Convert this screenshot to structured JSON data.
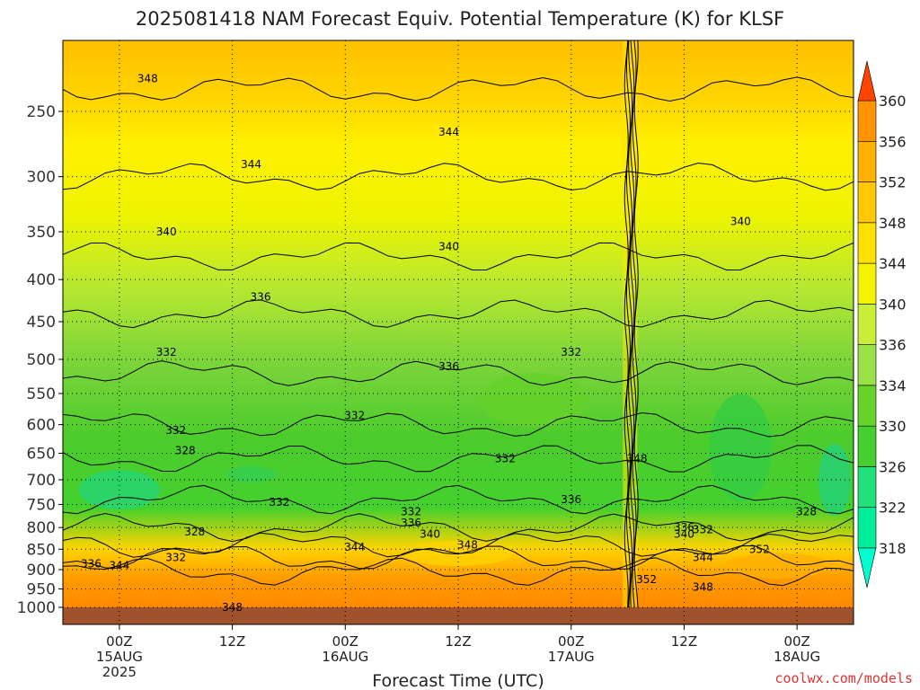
{
  "chart_data": {
    "type": "heatmap",
    "subtype": "filled contour time-height cross section",
    "title": "2025081418 NAM Forecast Equiv. Potential Temperature (K) for KLSF",
    "xlabel": "Forecast Time (UTC)",
    "ylabel": "",
    "y_scale": "log-pressure (inverted)",
    "y_ticks": [
      250,
      300,
      350,
      400,
      450,
      500,
      550,
      600,
      650,
      700,
      750,
      800,
      850,
      900,
      950,
      1000
    ],
    "ylim": [
      1000,
      200
    ],
    "x_ticks": [
      {
        "hour": 6,
        "lines": [
          "00Z",
          "15AUG",
          "2025"
        ]
      },
      {
        "hour": 18,
        "lines": [
          "12Z"
        ]
      },
      {
        "hour": 30,
        "lines": [
          "00Z",
          "16AUG"
        ]
      },
      {
        "hour": 42,
        "lines": [
          "12Z"
        ]
      },
      {
        "hour": 54,
        "lines": [
          "00Z",
          "17AUG"
        ]
      },
      {
        "hour": 66,
        "lines": [
          "12Z"
        ]
      },
      {
        "hour": 78,
        "lines": [
          "00Z",
          "18AUG"
        ]
      }
    ],
    "xlim_forecast_hours": [
      0,
      84
    ],
    "colorbar": {
      "levels": [
        318,
        322,
        326,
        330,
        334,
        336,
        340,
        344,
        348,
        352,
        356,
        360
      ],
      "colors": [
        "#00ee99",
        "#22e07a",
        "#44d02e",
        "#66d22a",
        "#9ae048",
        "#c8ee38",
        "#f4f400",
        "#ffe000",
        "#ffc800",
        "#ffb000",
        "#ff9400",
        "#ff6a00"
      ],
      "below_color": "#00ffcc",
      "above_color": "#ff4400"
    },
    "contour_labels": [
      {
        "value": 348,
        "hour": 9,
        "p": 228
      },
      {
        "value": 344,
        "hour": 41,
        "p": 265
      },
      {
        "value": 344,
        "hour": 20,
        "p": 290
      },
      {
        "value": 340,
        "hour": 11,
        "p": 350
      },
      {
        "value": 340,
        "hour": 41,
        "p": 365
      },
      {
        "value": 340,
        "hour": 72,
        "p": 340
      },
      {
        "value": 336,
        "hour": 21,
        "p": 420
      },
      {
        "value": 336,
        "hour": 41,
        "p": 510
      },
      {
        "value": 332,
        "hour": 11,
        "p": 490
      },
      {
        "value": 332,
        "hour": 54,
        "p": 490
      },
      {
        "value": 332,
        "hour": 31,
        "p": 585
      },
      {
        "value": 332,
        "hour": 12,
        "p": 610
      },
      {
        "value": 332,
        "hour": 47,
        "p": 660
      },
      {
        "value": 328,
        "hour": 13,
        "p": 645
      },
      {
        "value": 332,
        "hour": 23,
        "p": 745
      },
      {
        "value": 336,
        "hour": 54,
        "p": 740
      },
      {
        "value": 328,
        "hour": 14,
        "p": 810
      },
      {
        "value": 332,
        "hour": 37,
        "p": 765
      },
      {
        "value": 336,
        "hour": 37,
        "p": 790
      },
      {
        "value": 340,
        "hour": 39,
        "p": 815
      },
      {
        "value": 348,
        "hour": 43,
        "p": 840
      },
      {
        "value": 344,
        "hour": 31,
        "p": 845
      },
      {
        "value": 336,
        "hour": 3,
        "p": 885
      },
      {
        "value": 344,
        "hour": 6,
        "p": 890
      },
      {
        "value": 332,
        "hour": 12,
        "p": 870
      },
      {
        "value": 348,
        "hour": 61,
        "p": 660
      },
      {
        "value": 336,
        "hour": 66,
        "p": 800
      },
      {
        "value": 340,
        "hour": 66,
        "p": 815
      },
      {
        "value": 332,
        "hour": 68,
        "p": 805
      },
      {
        "value": 344,
        "hour": 68,
        "p": 870
      },
      {
        "value": 328,
        "hour": 79,
        "p": 765
      },
      {
        "value": 352,
        "hour": 74,
        "p": 850
      },
      {
        "value": 352,
        "hour": 62,
        "p": 925
      },
      {
        "value": 348,
        "hour": 68,
        "p": 945
      },
      {
        "value": 348,
        "hour": 18,
        "p": 1000
      }
    ]
  },
  "credit": "coolwx.com/models"
}
